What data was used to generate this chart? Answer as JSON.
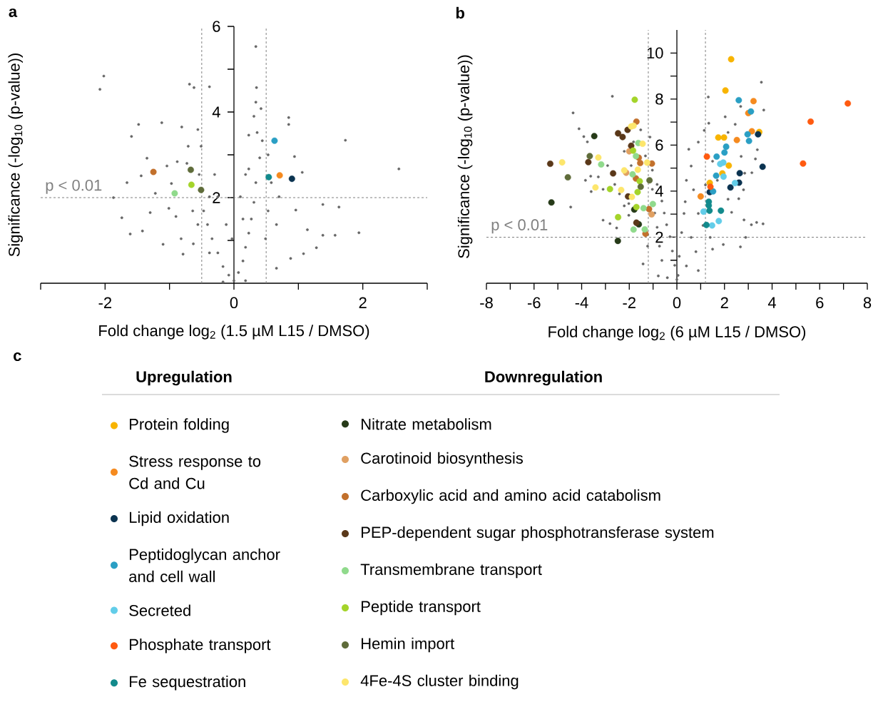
{
  "chart_data": [
    {
      "type": "scatter",
      "title": "a",
      "xlabel": "Fold change log$_{2}$ (1.5 µM L15 / DMSO)",
      "ylabel": "Significance (-log$_{10}$ (p-value))",
      "xlim": [
        -3,
        3
      ],
      "ylim": [
        0,
        6
      ],
      "xticks": [
        {
          "value": -3,
          "label": null
        },
        -2,
        {
          "value": -1,
          "label": null
        },
        0,
        {
          "value": 1,
          "label": null
        },
        2,
        {
          "value": 3,
          "label": null
        }
      ],
      "yticks": [
        {
          "value": 1,
          "label": null
        },
        2,
        {
          "value": 3,
          "label": null
        },
        4,
        {
          "value": 5,
          "label": null
        },
        6
      ],
      "marker": "circle",
      "legend": false,
      "ref_lines": [
        {
          "axis": "x",
          "value": -0.5,
          "color": "#808080",
          "line_style": "dashed"
        },
        {
          "axis": "x",
          "value": 0.5,
          "color": "#808080",
          "line_style": "dashed"
        },
        {
          "axis": "y",
          "value": 2,
          "label": "p < 0.01",
          "color": "#808080",
          "line_style": "dashed"
        }
      ],
      "series": [
        {
          "color": "#666666",
          "x": [
            -2.02,
            -2.08,
            -1.48,
            -1.59,
            -1.12,
            -0.81,
            -0.69,
            -0.62,
            -0.38,
            0.34,
            0.35,
            0.34,
            0.42,
            0.31,
            0.85,
            0.85,
            1.73,
            2.56,
            0.94,
            1.06,
            -1.87,
            -1.74,
            -1.61,
            -1.42,
            -1.66,
            -1.44,
            -1.35,
            -1.22,
            -1.04,
            -0.88,
            -0.97,
            -1.3,
            -1.01,
            -1.1,
            -0.9,
            -0.79,
            -0.63,
            1.38,
            1.63,
            1.94,
            1.38,
            1.57,
            1.28,
            1.08,
            0.96,
            0.88,
            1.14,
            0.66,
            0.7,
            0,
            -0.08,
            0.07,
            -0.17,
            0.14,
            -0.25,
            0.18,
            -0.34,
            0.23,
            -0.41,
            0.27,
            -0.47,
            0.31,
            -0.38,
            0.34,
            -0.54,
            0.23,
            0.4,
            -0.51,
            -0.56,
            0.23,
            0.44,
            0.36,
            0.58,
            0.53,
            0.66,
            0.49,
            -0.3,
            -0.25,
            -0.12,
            -0.03,
            0.1,
            0.14,
            0.18,
            0.53,
            -0.71,
            -0.73,
            -0.64,
            -0.56,
            -0.82,
            -0.38,
            -0.17,
            0.18
          ],
          "values": [
            4.84,
            4.53,
            3.71,
            3.43,
            3.75,
            3.65,
            4.65,
            4.57,
            4.59,
            5.53,
            4.57,
            4.23,
            4.08,
            3.9,
            3.87,
            3.71,
            3.34,
            2.67,
            2.96,
            2.59,
            2.0,
            1.53,
            1.15,
            1.22,
            2.35,
            2.51,
            2.92,
            2.1,
            2.74,
            2.84,
            2.33,
            1.65,
            1.75,
            0.91,
            1.56,
            0.68,
            0.92,
            1.84,
            1.78,
            1.18,
            1.12,
            1.12,
            0.83,
            0.69,
            1.71,
            0.58,
            1.25,
            0.35,
            2.02,
            0.06,
            0.19,
            0.25,
            0.39,
            0.52,
            0.71,
            0.84,
            1.04,
            1.17,
            1.37,
            1.5,
            1.69,
            1.89,
            2.02,
            2.35,
            2.54,
            2.67,
            2.93,
            3.2,
            3.59,
            3.46,
            3.33,
            3.52,
            2.35,
            1.69,
            1.37,
            1.04,
            2.54,
            2.02,
            1.37,
            1.04,
            2.02,
            1.5,
            2.54,
            3.0,
            3.2,
            2.8,
            1.69,
            1.37,
            1.04,
            0.71,
            0.03,
            0.06
          ]
        },
        {
          "color": "#f58a1f",
          "x": [
            0.71
          ],
          "values": [
            2.52
          ]
        },
        {
          "color": "#0b3350",
          "x": [
            0.9
          ],
          "values": [
            2.44
          ]
        },
        {
          "color": "#2a9fc4",
          "x": [
            0.63
          ],
          "values": [
            3.33
          ]
        },
        {
          "color": "#128a8c",
          "x": [
            0.54
          ],
          "values": [
            2.48
          ]
        },
        {
          "color": "#c2702c",
          "x": [
            -1.25
          ],
          "values": [
            2.6
          ]
        },
        {
          "color": "#90da8c",
          "x": [
            -0.92
          ],
          "values": [
            2.1
          ]
        },
        {
          "color": "#a4d42a",
          "x": [
            -0.66
          ],
          "values": [
            2.3
          ]
        },
        {
          "color": "#5f6c3a",
          "x": [
            -0.67,
            -0.51
          ],
          "values": [
            2.65,
            2.18
          ]
        }
      ]
    },
    {
      "type": "scatter",
      "title": "b",
      "xlabel": "Fold change log$_{2}$ (6 µM L15 / DMSO)",
      "ylabel": "Significance (-log$_{10}$ (p-value))",
      "xlim": [
        -8,
        8
      ],
      "ylim": [
        0,
        11
      ],
      "xticks": [
        -8,
        {
          "value": -7,
          "label": null
        },
        -6,
        {
          "value": -5,
          "label": null
        },
        -4,
        {
          "value": -3,
          "label": null
        },
        -2,
        {
          "value": -1,
          "label": null
        },
        0,
        {
          "value": 1,
          "label": null
        },
        2,
        {
          "value": 3,
          "label": null
        },
        4,
        {
          "value": 5,
          "label": null
        },
        6,
        {
          "value": 7,
          "label": null
        },
        8
      ],
      "yticks": [
        {
          "value": 1,
          "label": null
        },
        2,
        {
          "value": 3,
          "label": null
        },
        4,
        {
          "value": 5,
          "label": null
        },
        6,
        {
          "value": 7,
          "label": null
        },
        8,
        {
          "value": 9,
          "label": null
        },
        10
      ],
      "marker": "circle",
      "legend": "bottom",
      "annotations": [
        "c",
        "Upregulation",
        "Downregulation"
      ],
      "ref_lines": [
        {
          "axis": "x",
          "value": -1.2,
          "color": "#808080",
          "line_style": "dashed"
        },
        {
          "axis": "x",
          "value": 1.2,
          "color": "#808080",
          "line_style": "dashed"
        },
        {
          "axis": "y",
          "value": 2,
          "label": "p < 0.01",
          "color": "#808080",
          "line_style": "dashed"
        }
      ],
      "series": [
        {
          "color": "#666666",
          "x": [
            -2.71,
            -4.36,
            -4.11,
            -3.91,
            -3.76,
            -3.84,
            -3.62,
            -3.3,
            -4.46,
            -3.1,
            -2.81,
            -2.53,
            -2.02,
            -1.42,
            -0.78,
            -2.91,
            -2.61,
            -2.41,
            -2.21,
            -2.02,
            -2.21,
            -1.82,
            -1.52,
            -1.32,
            -1.03,
            -0.83,
            -0.63,
            -0.53,
            -0.43,
            -0.29,
            -0.19,
            -0.09,
            0,
            -1.03,
            -0.93,
            -0.83,
            -0.73,
            -0.63,
            -1.23,
            -1.13,
            -1.92,
            -3.1,
            -3.6,
            -1.23,
            3.55,
            1.32,
            1.34,
            2.03,
            2.68,
            3.65,
            2.45,
            3.38,
            3.3,
            3.15,
            2.85,
            2.7,
            2.8,
            2.15,
            2.6,
            2.3,
            2.82,
            3.13,
            3.62,
            3.35,
            1.95,
            2.67,
            2.89,
            1.4,
            1.5,
            0.9,
            1.15,
            0.9,
            0.5,
            0.6,
            0.4,
            0.35,
            0.3,
            0.2,
            0.1,
            0.05,
            0.7,
            0.9,
            0.6,
            1.1,
            1.2,
            1.5,
            1.7,
            0.8,
            0.4,
            2.15,
            -0.4
          ],
          "values": [
            8.12,
            7.4,
            6.71,
            6.37,
            6.14,
            4.47,
            4.65,
            4.62,
            3.31,
            2.74,
            2.59,
            2.4,
            2.95,
            0.84,
            0.32,
            5.11,
            4.29,
            3.88,
            3.36,
            3.46,
            5.73,
            6.14,
            6.66,
            5.53,
            4.91,
            4.29,
            3.57,
            3.05,
            2.54,
            2.02,
            1.4,
            0.78,
            0.16,
            4.08,
            3.05,
            2.43,
            1.61,
            0.99,
            1.61,
            6.35,
            5.11,
            4.08,
            3.98,
            2.12,
            8.73,
            8.09,
            6.95,
            7.23,
            7.68,
            7.52,
            6.9,
            5.8,
            5.4,
            4.8,
            4.78,
            5.51,
            4.06,
            3.65,
            3.67,
            3.08,
            2.75,
            2.54,
            2.58,
            2.64,
            1.68,
            1.58,
            1.99,
            1.99,
            1.48,
            0.55,
            6.64,
            6.13,
            5.82,
            5.09,
            4.47,
            3.54,
            3.03,
            2.2,
            1.17,
            0.34,
            4.06,
            3.03,
            1.99,
            2.51,
            4.27,
            5.3,
            4.47,
            1.37,
            0.75,
            6.55,
            0.24
          ]
        },
        {
          "name": "Protein folding",
          "color": "#f8b400",
          "x": [
            2.28,
            2.04,
            1.74,
            1.98,
            3.46,
            2.18,
            1.91,
            1.38
          ],
          "values": [
            9.73,
            8.37,
            6.33,
            6.33,
            6.57,
            5.11,
            4.77,
            4.36
          ]
        },
        {
          "name": "Stress response to Cd and Cu",
          "color": "#f58a1f",
          "x": [
            3.22,
            3.0,
            3.15,
            2.52,
            1.0
          ],
          "values": [
            7.91,
            7.39,
            6.6,
            6.22,
            3.77
          ]
        },
        {
          "name": "Lipid oxidation",
          "color": "#0b3350",
          "x": [
            3.41,
            3.6,
            2.64,
            2.61,
            2.25,
            1.38
          ],
          "values": [
            6.47,
            5.06,
            4.78,
            4.37,
            4.16,
            3.96
          ]
        },
        {
          "name": "Peptidoglycan anchor and cell wall",
          "color": "#2a9fc4",
          "x": [
            2.6,
            3.11,
            2.97,
            3.03,
            2.07,
            2.0,
            1.67,
            1.65,
            1.52
          ],
          "values": [
            7.95,
            7.46,
            6.47,
            6.18,
            5.93,
            5.68,
            5.5,
            4.67,
            3.99
          ]
        },
        {
          "name": "Secreted",
          "color": "#62cde9",
          "x": [
            1.82,
            1.95,
            1.96,
            2.44,
            1.12,
            1.48,
            1.76
          ],
          "values": [
            5.18,
            5.24,
            4.63,
            4.35,
            3.11,
            2.51,
            2.7
          ]
        },
        {
          "name": "Phosphate transport",
          "color": "#ff5a10",
          "x": [
            7.18,
            5.62,
            5.3,
            1.26,
            1.41
          ],
          "values": [
            7.81,
            7.02,
            5.2,
            5.5,
            4.19
          ]
        },
        {
          "name": "Fe sequestration",
          "color": "#128a8c",
          "x": [
            1.34,
            1.34,
            1.37,
            1.85,
            1.24
          ],
          "values": [
            3.54,
            3.38,
            3.15,
            3.15,
            2.53
          ]
        },
        {
          "name": "Nitrate metabolism",
          "color": "#263a18",
          "x": [
            -3.47,
            -5.27,
            -2.48,
            -1.79,
            -1.6
          ],
          "values": [
            6.39,
            3.51,
            1.84,
            3.2,
            2.56
          ]
        },
        {
          "name": "Carotinoid biosynthesis",
          "color": "#e0a062",
          "x": [
            -2.0,
            -1.06,
            -2.13
          ],
          "values": [
            5.73,
            2.99,
            4.8
          ]
        },
        {
          "name": "Carboxylic acid and amino acid catabolism",
          "color": "#c2702c",
          "x": [
            -1.7,
            -1.6,
            -1.72,
            -1.17,
            -1.32,
            -1.05,
            -1.54
          ],
          "values": [
            7.02,
            5.45,
            4.55,
            3.22,
            2.15,
            5.2,
            5.22
          ]
        },
        {
          "name": "PEP-dependent sugar phosphotransferase system",
          "color": "#5a3819",
          "x": [
            -5.32,
            -3.72,
            -2.47,
            -2.28,
            -2.07,
            -1.92,
            -2.68,
            -2.05,
            -1.7
          ],
          "values": [
            5.19,
            5.26,
            6.51,
            6.35,
            6.66,
            5.97,
            4.77,
            3.77,
            2.63
          ]
        },
        {
          "name": "Transmembrane transport",
          "color": "#90da8c",
          "x": [
            -1.62,
            -3.18,
            -1.86,
            -1.72,
            -1.4,
            -1.82,
            -1.35,
            -1.01
          ],
          "values": [
            6.09,
            5.16,
            4.73,
            5.52,
            3.26,
            2.33,
            2.34,
            3.44
          ]
        },
        {
          "name": "Peptide transport",
          "color": "#a4d42a",
          "x": [
            -1.77,
            -1.84,
            -1.56,
            -1.65,
            -2.81,
            -2.47,
            -1.7
          ],
          "values": [
            7.97,
            5.76,
            4.43,
            3.96,
            4.09,
            2.87,
            3.31
          ]
        },
        {
          "name": "Hemin import",
          "color": "#5f6c3a",
          "x": [
            -3.66,
            -4.58,
            -1.52,
            -1.15
          ],
          "values": [
            5.52,
            4.6,
            4.19,
            4.47
          ]
        },
        {
          "name": "4Fe-4S cluster binding",
          "color": "#fde66c",
          "x": [
            -4.82,
            -3.3,
            -3.42,
            -2.34,
            -1.92,
            -1.82,
            -2.21,
            -1.64,
            -1.25,
            -1.44,
            -1.89
          ],
          "values": [
            5.25,
            5.46,
            4.16,
            4.05,
            6.81,
            6.84,
            4.9,
            4.93,
            5.24,
            6.06,
            3.75
          ]
        }
      ]
    }
  ]
}
